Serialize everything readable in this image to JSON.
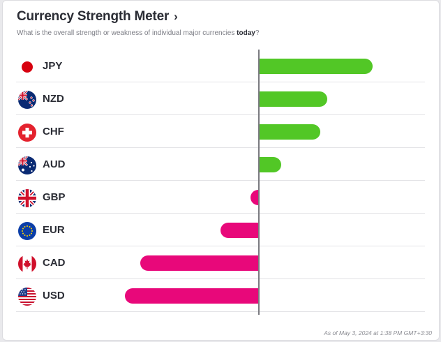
{
  "header": {
    "title": "Currency Strength Meter",
    "chevron": "›",
    "subtitle_prefix": "What is the overall strength or weakness of individual major currencies ",
    "subtitle_emphasis": "today",
    "subtitle_suffix": "?"
  },
  "footer": {
    "timestamp": "As of May 3, 2024 at 1:38 PM GMT+3:30"
  },
  "colors": {
    "positive": "#52c726",
    "negative": "#e8087a",
    "axis": "#7a7a80"
  },
  "chart_data": {
    "type": "bar",
    "orientation": "horizontal",
    "xlim": [
      -100,
      100
    ],
    "grid": false,
    "categories": [
      "JPY",
      "NZD",
      "CHF",
      "AUD",
      "GBP",
      "EUR",
      "CAD",
      "USD"
    ],
    "values": [
      83,
      50,
      45,
      17,
      -5,
      -24,
      -75,
      -85
    ],
    "flags": [
      "japan-flag-icon",
      "new-zealand-flag-icon",
      "switzerland-flag-icon",
      "australia-flag-icon",
      "united-kingdom-flag-icon",
      "european-union-flag-icon",
      "canada-flag-icon",
      "united-states-flag-icon"
    ]
  }
}
